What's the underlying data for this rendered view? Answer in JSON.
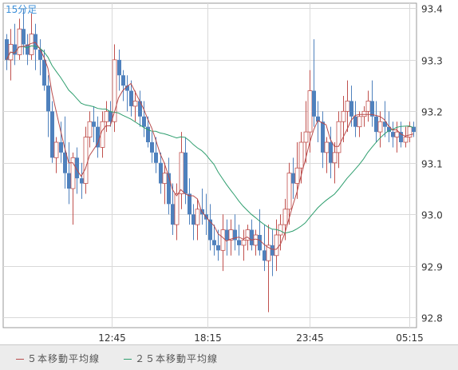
{
  "chart_data": {
    "type": "candlestick",
    "interval_label": "15分足",
    "x_tick_labels": [
      "12:45",
      "18:15",
      "23:45",
      "05:15"
    ],
    "y_ticks": [
      92.8,
      92.9,
      93.0,
      93.1,
      93.2,
      93.3,
      93.4
    ],
    "ylim": [
      92.78,
      93.41
    ],
    "grid": true,
    "colors": {
      "up": "#c0504d",
      "down": "#4f81bd",
      "ma5": "#b84a4a",
      "ma25": "#2e9e6e"
    },
    "series": [
      {
        "name": "５本移動平均線",
        "color": "#b84a4a"
      },
      {
        "name": "２５本移動平均線",
        "color": "#2e9e6e"
      }
    ],
    "candles": [
      [
        93.34,
        93.35,
        93.28,
        93.3
      ],
      [
        93.3,
        93.36,
        93.26,
        93.33
      ],
      [
        93.33,
        93.37,
        93.29,
        93.31
      ],
      [
        93.31,
        93.38,
        93.3,
        93.36
      ],
      [
        93.36,
        93.4,
        93.31,
        93.33
      ],
      [
        93.33,
        93.35,
        93.29,
        93.31
      ],
      [
        93.31,
        93.39,
        93.3,
        93.35
      ],
      [
        93.35,
        93.37,
        93.28,
        93.32
      ],
      [
        93.32,
        93.34,
        93.27,
        93.3
      ],
      [
        93.3,
        93.32,
        93.24,
        93.25
      ],
      [
        93.25,
        93.27,
        93.15,
        93.2
      ],
      [
        93.2,
        93.22,
        93.1,
        93.11
      ],
      [
        93.11,
        93.15,
        93.08,
        93.14
      ],
      [
        93.14,
        93.18,
        93.1,
        93.12
      ],
      [
        93.12,
        93.19,
        93.05,
        93.08
      ],
      [
        93.08,
        93.14,
        93.02,
        93.05
      ],
      [
        93.05,
        93.12,
        92.98,
        93.11
      ],
      [
        93.11,
        93.13,
        93.04,
        93.07
      ],
      [
        93.07,
        93.1,
        93.03,
        93.06
      ],
      [
        93.06,
        93.17,
        93.04,
        93.15
      ],
      [
        93.15,
        93.2,
        93.13,
        93.18
      ],
      [
        93.18,
        93.21,
        93.14,
        93.17
      ],
      [
        93.17,
        93.19,
        93.11,
        93.13
      ],
      [
        93.13,
        93.2,
        93.11,
        93.18
      ],
      [
        93.18,
        93.22,
        93.16,
        93.2
      ],
      [
        93.2,
        93.22,
        93.17,
        93.18
      ],
      [
        93.18,
        93.33,
        93.16,
        93.3
      ],
      [
        93.3,
        93.32,
        93.24,
        93.27
      ],
      [
        93.27,
        93.28,
        93.22,
        93.25
      ],
      [
        93.25,
        93.27,
        93.2,
        93.24
      ],
      [
        93.24,
        93.26,
        93.19,
        93.21
      ],
      [
        93.21,
        93.24,
        93.18,
        93.22
      ],
      [
        93.22,
        93.24,
        93.17,
        93.19
      ],
      [
        93.19,
        93.22,
        93.15,
        93.17
      ],
      [
        93.17,
        93.19,
        93.13,
        93.14
      ],
      [
        93.14,
        93.16,
        93.1,
        93.12
      ],
      [
        93.12,
        93.15,
        93.08,
        93.1
      ],
      [
        93.1,
        93.12,
        93.04,
        93.06
      ],
      [
        93.06,
        93.1,
        93.02,
        93.08
      ],
      [
        93.08,
        93.11,
        93.0,
        93.02
      ],
      [
        93.02,
        93.06,
        92.96,
        92.98
      ],
      [
        92.98,
        93.06,
        92.95,
        93.04
      ],
      [
        93.04,
        93.16,
        93.01,
        93.12
      ],
      [
        93.12,
        93.15,
        93.02,
        93.04
      ],
      [
        93.04,
        93.07,
        92.98,
        93.0
      ],
      [
        93.0,
        93.02,
        92.95,
        92.98
      ],
      [
        92.98,
        93.03,
        92.95,
        93.01
      ],
      [
        93.01,
        93.05,
        92.98,
        93.0
      ],
      [
        93.0,
        93.04,
        92.96,
        92.99
      ],
      [
        92.99,
        93.02,
        92.93,
        92.95
      ],
      [
        92.95,
        92.98,
        92.92,
        92.94
      ],
      [
        92.94,
        92.97,
        92.91,
        92.93
      ],
      [
        92.93,
        93.0,
        92.89,
        92.97
      ],
      [
        92.97,
        92.99,
        92.92,
        92.95
      ],
      [
        92.95,
        92.99,
        92.92,
        92.97
      ],
      [
        92.97,
        93.0,
        92.93,
        92.95
      ],
      [
        92.95,
        92.98,
        92.92,
        92.94
      ],
      [
        92.94,
        92.97,
        92.91,
        92.95
      ],
      [
        92.95,
        92.98,
        92.93,
        92.97
      ],
      [
        92.97,
        92.99,
        92.93,
        92.94
      ],
      [
        92.94,
        92.97,
        92.92,
        92.96
      ],
      [
        92.96,
        93.01,
        92.92,
        92.93
      ],
      [
        92.93,
        92.98,
        92.89,
        92.91
      ],
      [
        92.91,
        92.98,
        92.81,
        92.94
      ],
      [
        92.94,
        92.97,
        92.88,
        92.92
      ],
      [
        92.92,
        92.99,
        92.89,
        92.96
      ],
      [
        92.96,
        93.0,
        92.93,
        92.98
      ],
      [
        92.98,
        93.03,
        92.95,
        93.01
      ],
      [
        93.01,
        93.1,
        92.98,
        93.08
      ],
      [
        93.08,
        93.11,
        93.03,
        93.06
      ],
      [
        93.06,
        93.14,
        93.03,
        93.09
      ],
      [
        93.09,
        93.16,
        93.06,
        93.14
      ],
      [
        93.14,
        93.22,
        93.1,
        93.16
      ],
      [
        93.16,
        93.28,
        93.12,
        93.24
      ],
      [
        93.24,
        93.34,
        93.17,
        93.19
      ],
      [
        93.19,
        93.22,
        93.14,
        93.18
      ],
      [
        93.18,
        93.2,
        93.09,
        93.12
      ],
      [
        93.12,
        93.15,
        93.08,
        93.14
      ],
      [
        93.14,
        93.17,
        93.07,
        93.1
      ],
      [
        93.1,
        93.14,
        93.06,
        93.12
      ],
      [
        93.12,
        93.2,
        93.09,
        93.18
      ],
      [
        93.18,
        93.23,
        93.14,
        93.2
      ],
      [
        93.2,
        93.26,
        93.16,
        93.22
      ],
      [
        93.22,
        93.25,
        93.17,
        93.19
      ],
      [
        93.19,
        93.22,
        93.15,
        93.17
      ],
      [
        93.17,
        93.2,
        93.15,
        93.19
      ],
      [
        93.19,
        93.21,
        93.17,
        93.2
      ],
      [
        93.2,
        93.24,
        93.18,
        93.22
      ],
      [
        93.22,
        93.26,
        93.17,
        93.19
      ],
      [
        93.19,
        93.22,
        93.14,
        93.16
      ],
      [
        93.16,
        93.2,
        93.13,
        93.18
      ],
      [
        93.18,
        93.22,
        93.15,
        93.17
      ],
      [
        93.17,
        93.2,
        93.14,
        93.16
      ],
      [
        93.16,
        93.18,
        93.13,
        93.15
      ],
      [
        93.15,
        93.18,
        93.12,
        93.16
      ],
      [
        93.16,
        93.18,
        93.13,
        93.14
      ],
      [
        93.14,
        93.17,
        93.13,
        93.15
      ],
      [
        93.15,
        93.18,
        93.14,
        93.17
      ],
      [
        93.17,
        93.18,
        93.15,
        93.16
      ]
    ]
  }
}
